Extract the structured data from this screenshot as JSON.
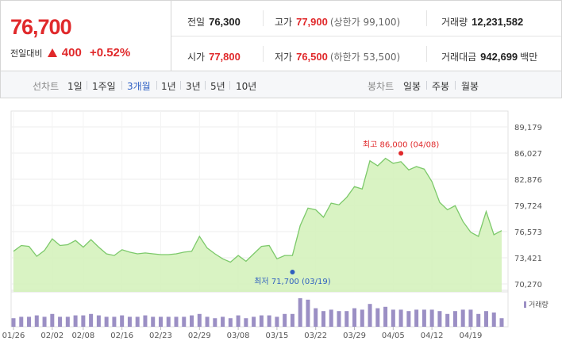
{
  "summary": {
    "price": "76,700",
    "change_label": "전일대비",
    "change_value": "400",
    "change_pct": "+0.52%",
    "prev_close_label": "전일",
    "prev_close": "76,300",
    "high_label": "고가",
    "high": "77,900",
    "upper_limit": "(상한가 99,100)",
    "volume_label": "거래량",
    "volume": "12,231,582",
    "open_label": "시가",
    "open": "77,800",
    "low_label": "저가",
    "low": "76,500",
    "lower_limit": "(하한가 53,500)",
    "amount_label": "거래대금",
    "amount": "942,699",
    "amount_unit": "백만",
    "up_color": "#e0292b"
  },
  "period_tabs": {
    "label": "선차트",
    "items": [
      "1일",
      "1주일",
      "3개월",
      "1년",
      "3년",
      "5년",
      "10년"
    ],
    "active": "3개월"
  },
  "candle_tabs": {
    "label": "봉차트",
    "items": [
      "일봉",
      "주봉",
      "월봉"
    ]
  },
  "chart_data": {
    "type": "area",
    "y_ticks": [
      "89,179",
      "86,027",
      "82,876",
      "79,724",
      "76,573",
      "73,421",
      "70,270"
    ],
    "ylim": [
      70270,
      89179
    ],
    "x_tick_labels": [
      "01/26",
      "02/02",
      "02/08",
      "02/16",
      "02/23",
      "02/29",
      "03/08",
      "03/15",
      "03/22",
      "03/29",
      "04/05",
      "04/12",
      "04/19"
    ],
    "x_tick_index": [
      0,
      5,
      9,
      14,
      19,
      24,
      29,
      34,
      39,
      44,
      49,
      54,
      59
    ],
    "series": [
      {
        "values": [
          74200,
          74900,
          74800,
          73600,
          74300,
          75700,
          74900,
          75000,
          75500,
          74700,
          75600,
          74700,
          73900,
          73700,
          74400,
          74100,
          73900,
          74000,
          73900,
          73800,
          73800,
          73900,
          74100,
          74200,
          76000,
          74600,
          73900,
          73300,
          72900,
          73700,
          73000,
          73900,
          74800,
          74900,
          73300,
          73700,
          73700,
          77300,
          79400,
          79200,
          78300,
          80000,
          79800,
          80700,
          82000,
          81700,
          85100,
          84500,
          85400,
          84800,
          85000,
          84000,
          84400,
          84100,
          82600,
          80100,
          79200,
          79700,
          77800,
          76500,
          76000,
          79000,
          76200,
          76700
        ]
      }
    ],
    "volume_label": "거래량",
    "volume": [
      6,
      7,
      7,
      8,
      7,
      9,
      7,
      7,
      8,
      8,
      9,
      8,
      7,
      7,
      8,
      7,
      7,
      8,
      7,
      7,
      7,
      7,
      7,
      8,
      9,
      7,
      6,
      7,
      6,
      8,
      6,
      7,
      8,
      8,
      7,
      9,
      9,
      20,
      19,
      13,
      11,
      12,
      11,
      11,
      13,
      12,
      16,
      13,
      14,
      12,
      12,
      11,
      12,
      12,
      12,
      11,
      9,
      11,
      12,
      12,
      9,
      11,
      10,
      6
    ],
    "max_annotation": "최고 86,000 (04/08)",
    "min_annotation": "최저 71,700 (03/19)",
    "max_point": {
      "index": 50,
      "value": 86000
    },
    "min_point": {
      "index": 36,
      "value": 71700
    },
    "line_color": "#7cc96a",
    "fill_color": "#d2f1b8",
    "volume_color": "#9b8fc4",
    "grid": true
  }
}
